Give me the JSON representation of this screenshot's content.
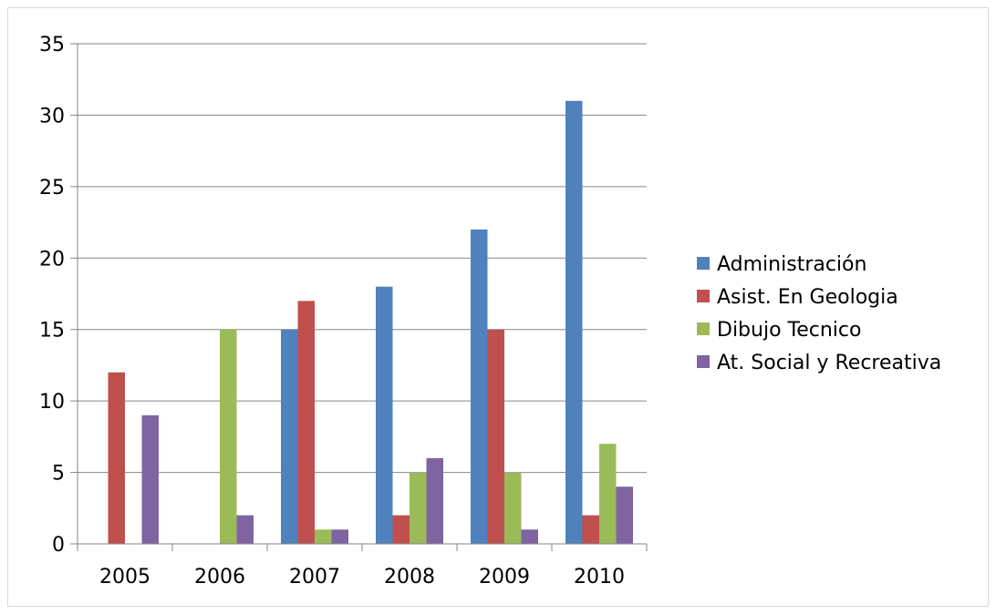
{
  "chart_data": {
    "type": "bar",
    "title": "",
    "xlabel": "",
    "ylabel": "",
    "categories": [
      "2005",
      "2006",
      "2007",
      "2008",
      "2009",
      "2010"
    ],
    "ylim": [
      0,
      35
    ],
    "yticks": [
      0,
      5,
      10,
      15,
      20,
      25,
      30,
      35
    ],
    "grid": true,
    "legend_position": "right",
    "series": [
      {
        "name": "Administración",
        "color": "#4f81bd",
        "values": [
          0,
          0,
          15,
          18,
          22,
          31
        ]
      },
      {
        "name": "Asist. En Geologia",
        "color": "#c0504d",
        "values": [
          12,
          0,
          17,
          2,
          15,
          2
        ]
      },
      {
        "name": "Dibujo Tecnico",
        "color": "#9bbb59",
        "values": [
          0,
          15,
          1,
          5,
          5,
          7
        ]
      },
      {
        "name": "At. Social y Recreativa",
        "color": "#8064a2",
        "values": [
          9,
          2,
          1,
          6,
          1,
          4
        ]
      }
    ]
  }
}
